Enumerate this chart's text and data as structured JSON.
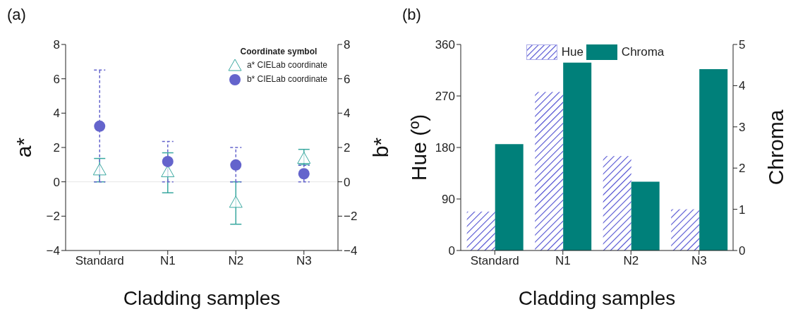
{
  "chart_data": [
    {
      "type": "scatter",
      "xlabel": "Cladding samples",
      "ylabel": "a*",
      "y2label": "b*",
      "legend_title": "Coordinate symbol",
      "annotations": [
        "(a)"
      ],
      "categories": [
        "Standard",
        "N1",
        "N2",
        "N3"
      ],
      "series": [
        {
          "name": "a* CIELab coordinate",
          "color": "#3aa8a0",
          "marker": "triangle",
          "values": [
            0.69,
            0.58,
            -1.2,
            1.36
          ],
          "errors": [
            [
              0,
              1.36
            ],
            [
              -0.64,
              1.69
            ],
            [
              -2.47,
              0
            ],
            [
              1.0,
              1.89
            ]
          ]
        },
        {
          "name": "b* CIELab coordinate",
          "color": "#6464cc",
          "marker": "circle",
          "axis": "y2",
          "values": [
            3.24,
            1.18,
            0.98,
            0.47
          ],
          "errors": [
            [
              0,
              6.51
            ],
            [
              0,
              2.35
            ],
            [
              0,
              2.0
            ],
            [
              0,
              0.96
            ]
          ]
        }
      ],
      "ylim": [
        -4,
        8
      ],
      "yticks": [
        {
          "value": -4,
          "label": "−4"
        },
        {
          "value": -2,
          "label": "−2"
        },
        0,
        2,
        4,
        6,
        8
      ],
      "y2lim": [
        -4,
        8
      ],
      "y2ticks": [
        {
          "value": -4,
          "label": "−4"
        },
        {
          "value": -2,
          "label": "−2"
        },
        0,
        2,
        4,
        6,
        8
      ],
      "ref_lines": [
        {
          "axis": "y",
          "value": 0,
          "color": "#e6e6e6"
        }
      ],
      "legend": "top right",
      "grid": false
    },
    {
      "type": "bar",
      "xlabel": "Cladding samples",
      "ylabel": "Hue (º)",
      "y2label": "Chroma",
      "annotations": [
        "(b)"
      ],
      "categories": [
        "Standard",
        "N1",
        "N2",
        "N3"
      ],
      "series": [
        {
          "name": "Hue",
          "color": "#4a4ad0",
          "values": [
            68,
            277,
            165,
            72
          ]
        },
        {
          "name": "Chroma",
          "color": "#00807a",
          "axis": "y2",
          "values": [
            2.58,
            4.56,
            1.67,
            4.4
          ]
        }
      ],
      "ylim": [
        0,
        360
      ],
      "yticks": [
        0,
        90,
        180,
        270,
        360
      ],
      "y2lim": [
        0,
        5
      ],
      "y2ticks": [
        0,
        1,
        2,
        3,
        4,
        5
      ],
      "legend": "top",
      "grid": false
    }
  ]
}
